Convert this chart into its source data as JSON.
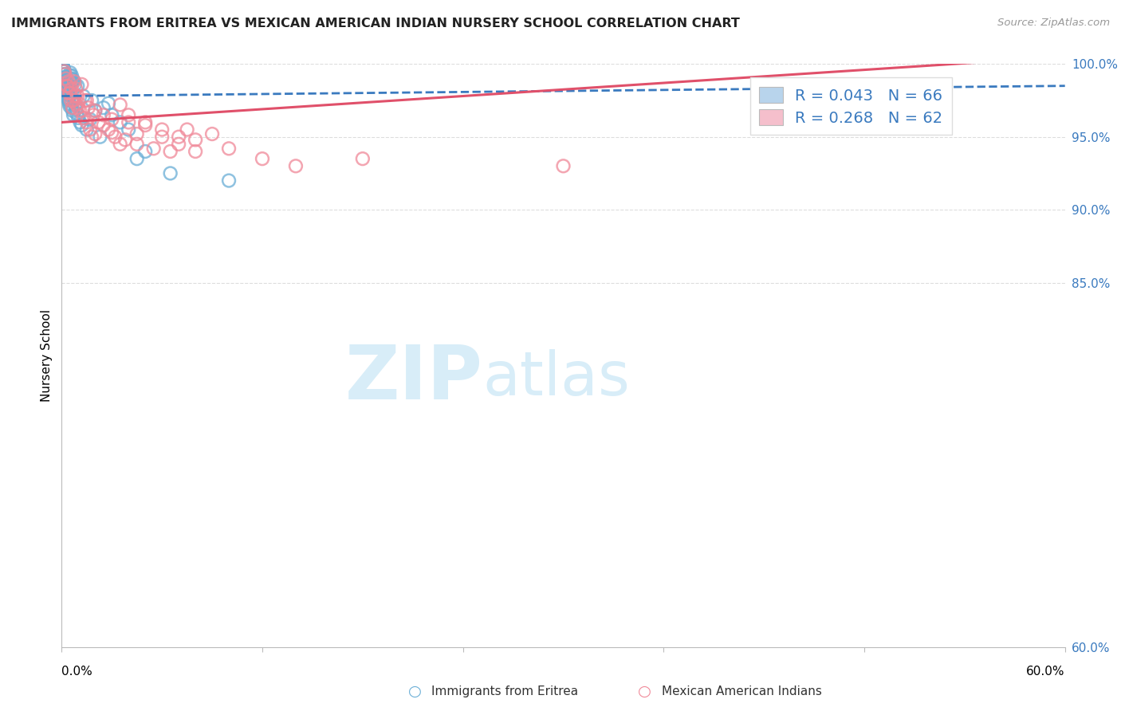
{
  "title": "IMMIGRANTS FROM ERITREA VS MEXICAN AMERICAN INDIAN NURSERY SCHOOL CORRELATION CHART",
  "source": "Source: ZipAtlas.com",
  "ylabel": "Nursery School",
  "xmin": 0.0,
  "xmax": 60.0,
  "ymin": 60.0,
  "ymax": 100.0,
  "yticks": [
    60.0,
    85.0,
    90.0,
    95.0,
    100.0
  ],
  "ytick_labels": [
    "60.0%",
    "85.0%",
    "90.0%",
    "95.0%",
    "100.0%"
  ],
  "xtick_left": "0.0%",
  "xtick_right": "60.0%",
  "legend1_label": "R = 0.043   N = 66",
  "legend2_label": "R = 0.268   N = 62",
  "legend1_facecolor": "#b8d4ec",
  "legend2_facecolor": "#f5bfcc",
  "scatter1_color": "#6aaed6",
  "scatter2_color": "#f08898",
  "trend1_color": "#3a7abf",
  "trend2_color": "#e0506a",
  "watermark_zip": "ZIP",
  "watermark_atlas": "atlas",
  "watermark_color": "#d8edf8",
  "grid_color": "#dddddd",
  "blue_x": [
    0.08,
    0.12,
    0.15,
    0.18,
    0.2,
    0.22,
    0.25,
    0.28,
    0.3,
    0.32,
    0.35,
    0.38,
    0.4,
    0.42,
    0.45,
    0.48,
    0.5,
    0.52,
    0.55,
    0.58,
    0.6,
    0.65,
    0.7,
    0.75,
    0.8,
    0.85,
    0.9,
    0.95,
    1.0,
    1.1,
    1.2,
    1.3,
    1.5,
    1.7,
    2.0,
    2.3,
    2.5,
    2.8,
    3.0,
    3.5,
    4.0,
    0.1,
    0.2,
    0.3,
    0.4,
    0.15,
    0.25,
    0.35,
    0.1,
    0.12,
    0.08,
    0.05,
    1.8,
    0.6,
    0.7,
    0.8,
    4.5,
    5.0,
    6.5,
    10.0,
    0.55,
    0.65,
    0.45,
    0.38,
    0.28,
    0.22
  ],
  "blue_y": [
    99.8,
    99.5,
    99.6,
    99.3,
    99.1,
    98.9,
    98.7,
    99.0,
    98.5,
    98.3,
    98.1,
    97.9,
    97.7,
    97.5,
    97.3,
    97.1,
    99.2,
    99.4,
    99.0,
    98.8,
    97.0,
    96.8,
    96.5,
    97.5,
    97.2,
    96.9,
    96.6,
    98.5,
    96.3,
    96.0,
    95.8,
    97.8,
    95.5,
    96.2,
    96.8,
    95.0,
    97.0,
    97.3,
    96.5,
    96.0,
    95.5,
    99.7,
    99.3,
    98.6,
    98.2,
    99.5,
    99.1,
    98.4,
    98.0,
    99.6,
    99.8,
    99.9,
    97.5,
    99.2,
    98.9,
    98.6,
    93.5,
    94.0,
    92.5,
    92.0,
    99.0,
    98.7,
    98.3,
    97.6,
    98.1,
    98.5
  ],
  "pink_x": [
    0.15,
    0.25,
    0.35,
    0.45,
    0.55,
    0.65,
    0.75,
    0.85,
    0.95,
    1.0,
    1.1,
    1.2,
    1.3,
    1.4,
    1.5,
    1.6,
    1.7,
    1.8,
    1.9,
    2.0,
    2.2,
    2.5,
    2.8,
    3.0,
    3.2,
    3.5,
    3.8,
    4.0,
    4.5,
    5.0,
    5.5,
    6.0,
    6.5,
    7.0,
    7.5,
    8.0,
    9.0,
    10.0,
    12.0,
    14.0,
    18.0,
    30.0,
    0.2,
    0.4,
    0.6,
    0.8,
    1.0,
    1.5,
    2.0,
    2.5,
    3.0,
    4.0,
    5.0,
    6.0,
    7.0,
    8.0,
    3.5,
    4.5,
    0.3,
    0.5,
    0.7,
    0.9
  ],
  "pink_y": [
    99.5,
    99.0,
    98.5,
    98.0,
    97.5,
    97.0,
    98.8,
    98.3,
    97.8,
    97.3,
    96.8,
    98.6,
    96.3,
    97.5,
    96.0,
    97.0,
    95.5,
    95.0,
    96.5,
    95.2,
    96.0,
    95.8,
    95.5,
    95.3,
    95.0,
    97.2,
    94.8,
    96.5,
    94.5,
    96.0,
    94.2,
    95.5,
    94.0,
    95.0,
    95.5,
    94.8,
    95.2,
    94.2,
    93.5,
    93.0,
    93.5,
    93.0,
    99.3,
    98.8,
    98.3,
    97.8,
    97.0,
    97.5,
    96.8,
    96.5,
    96.2,
    96.0,
    95.8,
    95.0,
    94.5,
    94.0,
    94.5,
    95.2,
    98.5,
    98.0,
    97.5,
    97.2
  ],
  "trend1_x0": 0.0,
  "trend1_y0": 97.8,
  "trend1_x1": 60.0,
  "trend1_y1": 98.5,
  "trend2_x0": 0.0,
  "trend2_y0": 96.0,
  "trend2_x1": 60.0,
  "trend2_y1": 100.5
}
